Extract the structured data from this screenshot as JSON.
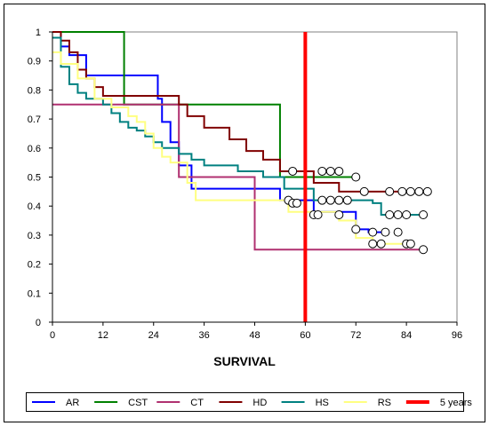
{
  "chart_data": {
    "type": "line",
    "step": true,
    "title": "",
    "xlabel": "SURVIVAL",
    "ylabel": "",
    "xlim": [
      0,
      96
    ],
    "ylim": [
      0,
      1
    ],
    "xticks": [
      "0",
      "12",
      "24",
      "36",
      "48",
      "60",
      "72",
      "84",
      "96"
    ],
    "yticks": [
      "0",
      "0.1",
      "0.2",
      "0.3",
      "0.4",
      "0.5",
      "0.6",
      "0.7",
      "0.8",
      "0.9",
      "1"
    ],
    "grid": false,
    "legend_position": "bottom",
    "series": [
      {
        "name": "AR",
        "color": "#0000FF",
        "points": [
          [
            0,
            1
          ],
          [
            2,
            0.95
          ],
          [
            4,
            0.92
          ],
          [
            8,
            0.85
          ],
          [
            25,
            0.77
          ],
          [
            26,
            0.69
          ],
          [
            28,
            0.62
          ],
          [
            30,
            0.54
          ],
          [
            33,
            0.46
          ],
          [
            54,
            0.42
          ],
          [
            62,
            0.38
          ],
          [
            72,
            0.32
          ],
          [
            75,
            0.31
          ],
          [
            80,
            0.31
          ]
        ],
        "censored": [
          [
            76,
            0.31
          ],
          [
            79,
            0.31
          ],
          [
            82,
            0.31
          ]
        ]
      },
      {
        "name": "CST",
        "color": "#008000",
        "points": [
          [
            0,
            1
          ],
          [
            17,
            0.75
          ],
          [
            54,
            0.5
          ],
          [
            72,
            0.5
          ]
        ],
        "censored": [
          [
            72,
            0.5
          ]
        ]
      },
      {
        "name": "CT",
        "color": "#B03070",
        "points": [
          [
            0,
            0.75
          ],
          [
            30,
            0.5
          ],
          [
            48,
            0.25
          ],
          [
            88,
            0.25
          ]
        ],
        "censored": [
          [
            88,
            0.25
          ]
        ]
      },
      {
        "name": "HD",
        "color": "#800000",
        "points": [
          [
            0,
            1
          ],
          [
            2,
            0.97
          ],
          [
            4,
            0.93
          ],
          [
            6,
            0.87
          ],
          [
            8,
            0.84
          ],
          [
            10,
            0.81
          ],
          [
            12,
            0.78
          ],
          [
            30,
            0.75
          ],
          [
            32,
            0.71
          ],
          [
            36,
            0.67
          ],
          [
            42,
            0.63
          ],
          [
            46,
            0.59
          ],
          [
            50,
            0.56
          ],
          [
            54,
            0.52
          ],
          [
            62,
            0.48
          ],
          [
            68,
            0.45
          ],
          [
            89,
            0.45
          ]
        ],
        "censored": [
          [
            57,
            0.52
          ],
          [
            64,
            0.52
          ],
          [
            66,
            0.52
          ],
          [
            68,
            0.52
          ],
          [
            74,
            0.45
          ],
          [
            80,
            0.45
          ],
          [
            83,
            0.45
          ],
          [
            85,
            0.45
          ],
          [
            87,
            0.45
          ],
          [
            89,
            0.45
          ]
        ]
      },
      {
        "name": "HS",
        "color": "#008080",
        "points": [
          [
            0,
            0.98
          ],
          [
            2,
            0.88
          ],
          [
            4,
            0.82
          ],
          [
            6,
            0.79
          ],
          [
            8,
            0.77
          ],
          [
            12,
            0.75
          ],
          [
            14,
            0.72
          ],
          [
            16,
            0.69
          ],
          [
            18,
            0.67
          ],
          [
            20,
            0.66
          ],
          [
            22,
            0.64
          ],
          [
            24,
            0.62
          ],
          [
            26,
            0.6
          ],
          [
            30,
            0.58
          ],
          [
            33,
            0.56
          ],
          [
            36,
            0.54
          ],
          [
            44,
            0.52
          ],
          [
            50,
            0.5
          ],
          [
            55,
            0.46
          ],
          [
            62,
            0.42
          ],
          [
            76,
            0.41
          ],
          [
            78,
            0.37
          ],
          [
            88,
            0.37
          ]
        ],
        "censored": [
          [
            56,
            0.42
          ],
          [
            57,
            0.41
          ],
          [
            58,
            0.41
          ],
          [
            62,
            0.37
          ],
          [
            63,
            0.37
          ],
          [
            64,
            0.42
          ],
          [
            66,
            0.42
          ],
          [
            68,
            0.42
          ],
          [
            68,
            0.37
          ],
          [
            70,
            0.42
          ],
          [
            80,
            0.37
          ],
          [
            82,
            0.37
          ],
          [
            84,
            0.37
          ],
          [
            88,
            0.37
          ]
        ]
      },
      {
        "name": "RS",
        "color": "#FFFF80",
        "points": [
          [
            0,
            0.93
          ],
          [
            2,
            0.89
          ],
          [
            6,
            0.84
          ],
          [
            10,
            0.77
          ],
          [
            14,
            0.74
          ],
          [
            18,
            0.71
          ],
          [
            20,
            0.69
          ],
          [
            22,
            0.65
          ],
          [
            24,
            0.6
          ],
          [
            26,
            0.57
          ],
          [
            28,
            0.55
          ],
          [
            32,
            0.48
          ],
          [
            34,
            0.42
          ],
          [
            52,
            0.42
          ],
          [
            56,
            0.38
          ],
          [
            68,
            0.35
          ],
          [
            72,
            0.29
          ],
          [
            76,
            0.27
          ],
          [
            84,
            0.27
          ]
        ],
        "censored": [
          [
            72,
            0.32
          ],
          [
            76,
            0.27
          ],
          [
            78,
            0.27
          ],
          [
            84,
            0.27
          ],
          [
            85,
            0.27
          ]
        ]
      }
    ],
    "reference_line": {
      "name": "5 years",
      "x": 60,
      "color": "#FF0000"
    }
  }
}
